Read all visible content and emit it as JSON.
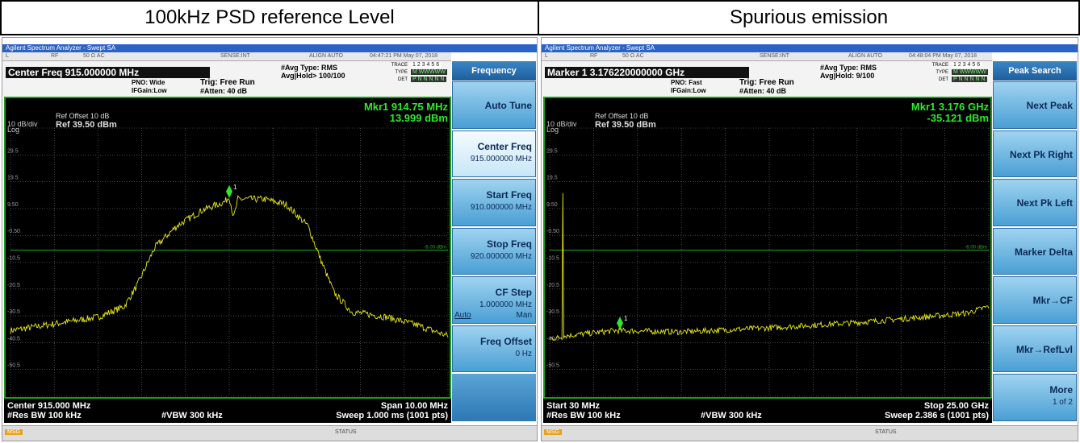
{
  "header": [
    "100kHz PSD reference Level",
    "Spurious emission"
  ],
  "panels": [
    {
      "app_title": "Agilent Spectrum Analyzer - Swept SA",
      "status_row": [
        "L",
        "RF",
        "50 Ω AC",
        "SENSE:INT",
        "ALIGN AUTO",
        "04:47:21 PM May 07, 2018"
      ],
      "main_setting": "Center Freq 915.000000 MHz",
      "pno": "PNO: Wide",
      "ifgain": "IFGain:Low",
      "trig": "Trig: Free Run",
      "atten": "#Atten: 40 dB",
      "avg_type": "#Avg Type: RMS",
      "avg_hold": "Avg|Hold> 100/100",
      "trace_labels": [
        "TRACE",
        "TYPE",
        "DET"
      ],
      "trace_values": [
        "1 2 3 4 5 6",
        "M WWWWW",
        "P N N N N N"
      ],
      "ref_offset": "Ref Offset 10 dB",
      "ref_level": "Ref 39.50 dBm",
      "scale": "10 dB/div",
      "scale_type": "Log",
      "marker": "Mkr1 914.75 MHz",
      "marker_value": "13.999 dBm",
      "marker_id": "1",
      "y_labels": [
        "29.5",
        "19.5",
        "9.50",
        "-0.50",
        "-10.5",
        "-20.5",
        "-30.5",
        "-40.5",
        "-50.5"
      ],
      "line_label": "-6.00 dBm",
      "bottom": [
        "Center 915.000 MHz",
        "Span 10.00 MHz",
        "#Res BW 100 kHz",
        "#VBW 300 kHz",
        "Sweep  1.000 ms (1001 pts)"
      ],
      "softkey_title": "Frequency",
      "softkeys": [
        {
          "label": "Auto Tune"
        },
        {
          "label": "Center Freq",
          "value": "915.000000 MHz"
        },
        {
          "label": "Start Freq",
          "value": "910.000000 MHz"
        },
        {
          "label": "Stop Freq",
          "value": "920.000000 MHz"
        },
        {
          "label": "CF Step",
          "value": "1.000000 MHz",
          "options": [
            "Auto",
            "Man"
          ]
        },
        {
          "label": "Freq Offset",
          "value": "0 Hz"
        }
      ],
      "msg": "MSG",
      "status": "STATUS"
    },
    {
      "app_title": "Agilent Spectrum Analyzer - Swept SA",
      "status_row": [
        "L",
        "RF",
        "50 Ω AC",
        "SENSE:INT",
        "ALIGN AUTO",
        "04:48:04 PM May 07, 2018"
      ],
      "main_setting": "Marker 1 3.176220000000 GHz",
      "pno": "PNO: Fast",
      "ifgain": "IFGain:Low",
      "trig": "Trig: Free Run",
      "atten": "#Atten: 40 dB",
      "avg_type": "#Avg Type: RMS",
      "avg_hold": "Avg|Hold: 9/100",
      "trace_labels": [
        "TRACE",
        "TYPE",
        "DET"
      ],
      "trace_values": [
        "1 2 3 4 5 6",
        "M WWWWW",
        "P N N N N N"
      ],
      "ref_offset": "Ref Offset 10 dB",
      "ref_level": "Ref 39.50 dBm",
      "scale": "10 dB/div",
      "scale_type": "Log",
      "marker": "Mkr1 3.176 GHz",
      "marker_value": "-35.121 dBm",
      "marker_id": "1",
      "y_labels": [
        "29.5",
        "19.5",
        "9.50",
        "-0.50",
        "-10.5",
        "-20.5",
        "-30.5",
        "-40.5",
        "-50.5"
      ],
      "line_label": "-6.00 dBm",
      "bottom": [
        "Start 30 MHz",
        "Stop 25.00 GHz",
        "#Res BW 100 kHz",
        "#VBW 300 kHz",
        "Sweep  2.386 s (1001 pts)"
      ],
      "softkey_title": "Peak Search",
      "softkeys": [
        {
          "label": "Next Peak"
        },
        {
          "label": "Next Pk Right"
        },
        {
          "label": "Next Pk Left"
        },
        {
          "label": "Marker Delta"
        },
        {
          "label": "Mkr→CF"
        },
        {
          "label": "Mkr→RefLvl"
        },
        {
          "label": "More",
          "value": "1 of 2"
        }
      ],
      "msg": "MSG",
      "status": "STATUS"
    }
  ]
}
